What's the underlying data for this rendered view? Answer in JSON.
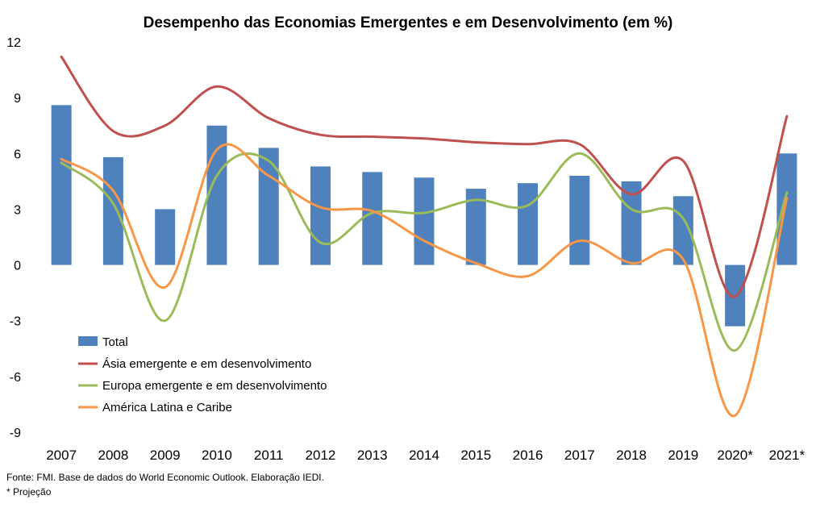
{
  "chart_data": {
    "type": "bar",
    "title": "Desempenho das Economias Emergentes e em Desenvolvimento (em %)",
    "categories": [
      "2007",
      "2008",
      "2009",
      "2010",
      "2011",
      "2012",
      "2013",
      "2014",
      "2015",
      "2016",
      "2017",
      "2018",
      "2019",
      "2020*",
      "2021*"
    ],
    "ylim": [
      -9,
      12
    ],
    "yticks": [
      "12",
      "9",
      "6",
      "3",
      "0",
      "-3",
      "-6",
      "-9"
    ],
    "grid": false,
    "legend_position": "bottom-left",
    "series": [
      {
        "name": "Total",
        "type": "bar",
        "color": "#4f81bd",
        "values": [
          8.6,
          5.8,
          3.0,
          7.5,
          6.3,
          5.3,
          5.0,
          4.7,
          4.1,
          4.4,
          4.8,
          4.5,
          3.7,
          -3.3,
          6.0
        ]
      },
      {
        "name": "Ásia emergente e em desenvolvimento",
        "type": "line",
        "color": "#c0504d",
        "values": [
          11.2,
          7.2,
          7.5,
          9.6,
          7.9,
          7.0,
          6.9,
          6.8,
          6.6,
          6.5,
          6.5,
          3.8,
          5.6,
          -1.7,
          8.0
        ]
      },
      {
        "name": "Europa emergente e em desenvolvimento",
        "type": "line",
        "color": "#9bbb59",
        "values": [
          5.5,
          3.3,
          -3.0,
          4.8,
          5.6,
          1.2,
          2.8,
          2.8,
          3.5,
          3.2,
          6.0,
          3.0,
          2.5,
          -4.6,
          3.9
        ]
      },
      {
        "name": "América Latina e Caribe",
        "type": "line",
        "color": "#f79646",
        "values": [
          5.7,
          4.0,
          -1.2,
          6.2,
          4.8,
          3.1,
          2.9,
          1.3,
          0.1,
          -0.6,
          1.3,
          0.1,
          0.3,
          -8.1,
          3.6
        ]
      }
    ],
    "notes": [
      "Fonte: FMI. Base de dados do World Economic Outlook. Elaboração IEDI.",
      "* Projeção"
    ]
  }
}
